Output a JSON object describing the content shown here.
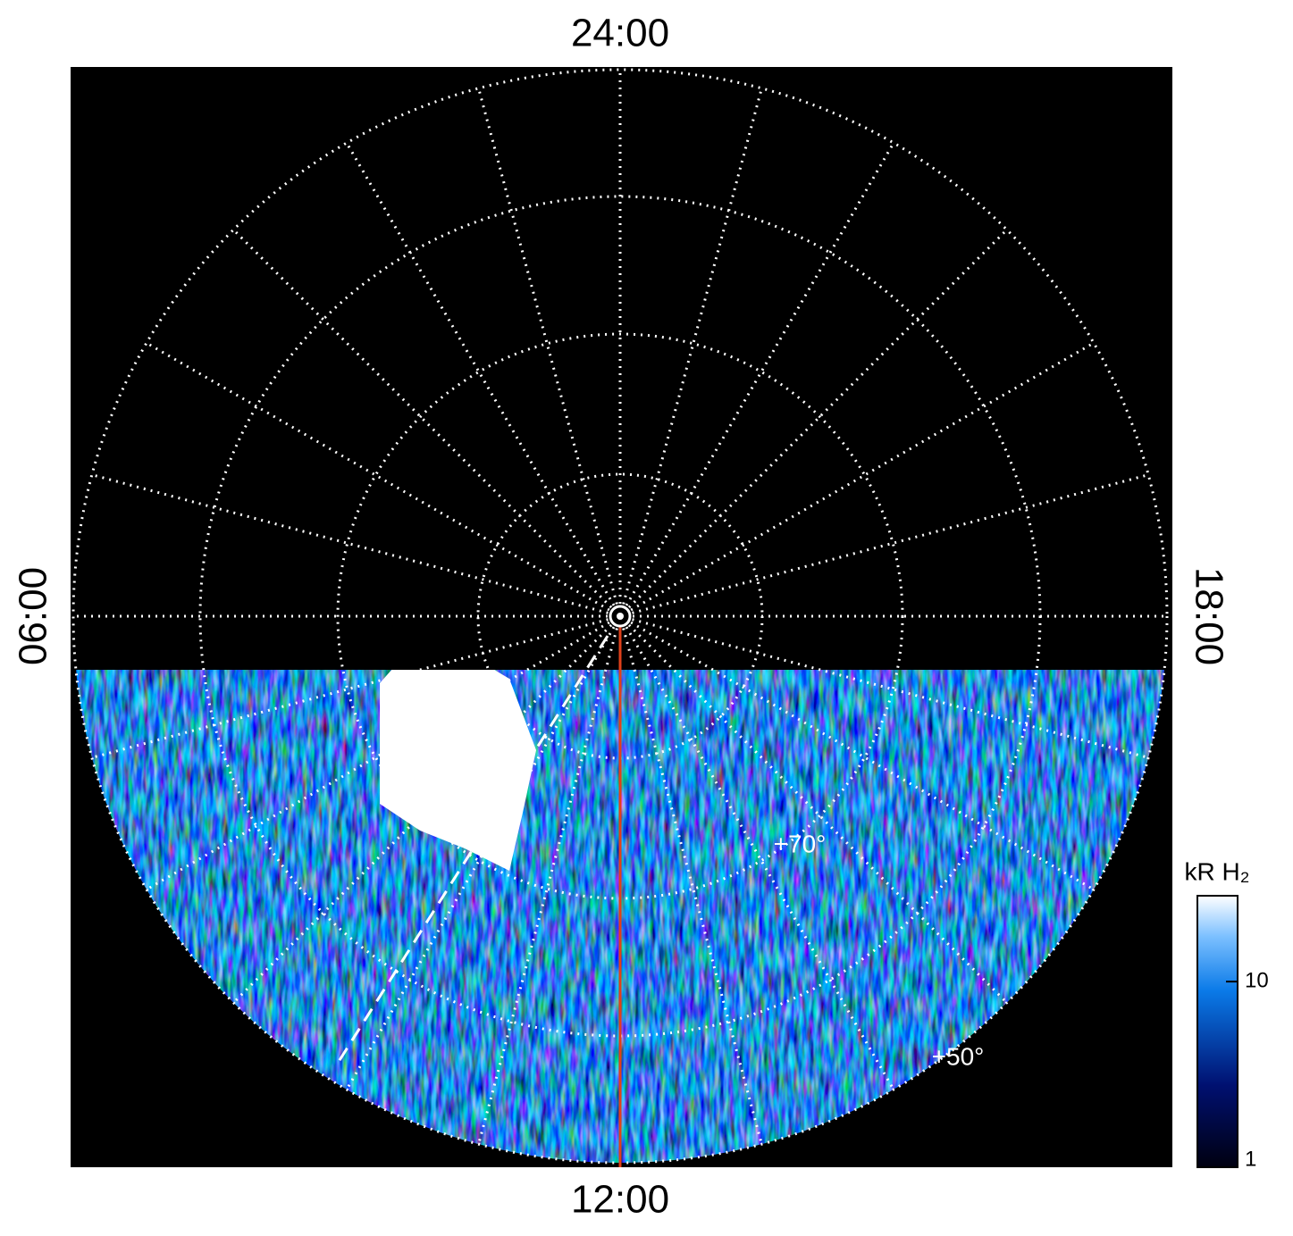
{
  "chart_data": {
    "type": "polar-map",
    "labels": {
      "top": "24:00",
      "bottom": "12:00",
      "left": "06:00",
      "right": "18:00"
    },
    "annotations": [
      "+70°",
      "+50°"
    ],
    "colorbar": {
      "label": "kR H₂",
      "log": true,
      "lim": [
        1,
        29
      ],
      "ticks": [
        1,
        10
      ]
    }
  }
}
